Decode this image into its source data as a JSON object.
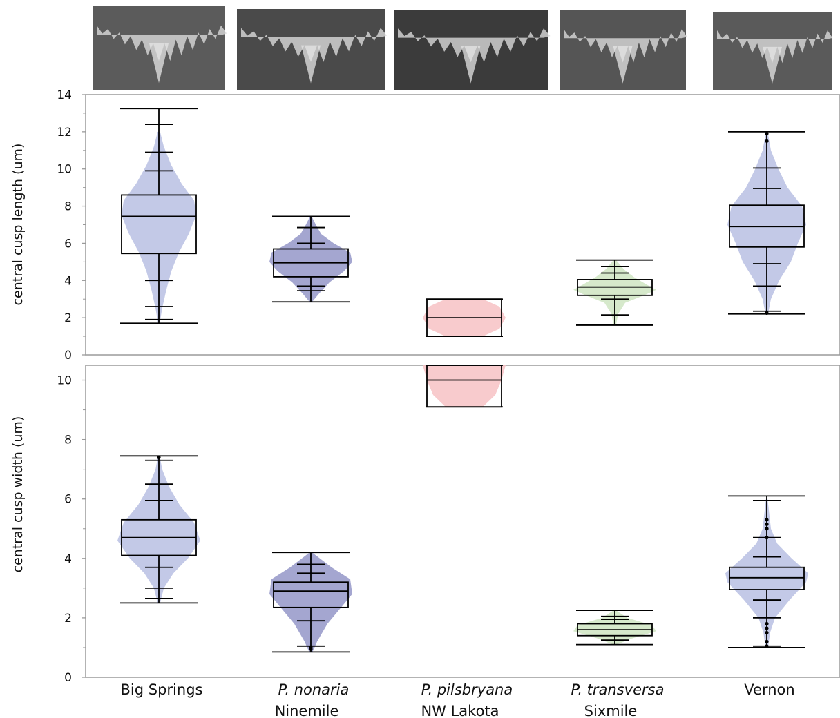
{
  "thumbnails": [
    {
      "group": "Big Springs",
      "shade": "#5b5b5b"
    },
    {
      "group": "P. nonaria Ninemile",
      "shade": "#4a4a4a"
    },
    {
      "group": "P. pilsbryana NW Lakota",
      "shade": "#3b3b3b"
    },
    {
      "group": "P. transversa Sixmile",
      "shade": "#555555"
    },
    {
      "group": "Vernon",
      "shade": "#5a5a5a"
    }
  ],
  "chart_data": [
    {
      "type": "violin+box",
      "ylabel": "central cusp length (um)",
      "ylim": [
        0,
        14
      ],
      "yticks": [
        0,
        2,
        4,
        6,
        8,
        10,
        12,
        14
      ],
      "categories": [
        {
          "name_italic": "",
          "name": "Big Springs"
        },
        {
          "name_italic": "P. nonaria",
          "name": "Ninemile"
        },
        {
          "name_italic": "P. pilsbryana",
          "name": "NW Lakota"
        },
        {
          "name_italic": "P. transversa",
          "name": "Sixmile"
        },
        {
          "name_italic": "",
          "name": "Vernon"
        }
      ],
      "groups": [
        {
          "color": "#b8bfe3",
          "min": 1.7,
          "q1": 5.45,
          "median": 7.45,
          "q3": 8.6,
          "max": 13.25,
          "quantile_ticks": [
            1.9,
            2.6,
            4.0,
            9.9,
            10.9,
            12.4
          ],
          "violin": [
            [
              1.7,
              0.02
            ],
            [
              2.5,
              0.08
            ],
            [
              3.5,
              0.18
            ],
            [
              4.5,
              0.3
            ],
            [
              5.5,
              0.48
            ],
            [
              6.5,
              0.72
            ],
            [
              7.5,
              0.9
            ],
            [
              8.3,
              0.85
            ],
            [
              9.2,
              0.55
            ],
            [
              10.2,
              0.3
            ],
            [
              11.2,
              0.12
            ],
            [
              12.0,
              0.03
            ]
          ],
          "outliers": []
        },
        {
          "color": "#9496c8",
          "min": 2.85,
          "q1": 4.2,
          "median": 4.95,
          "q3": 5.7,
          "max": 7.45,
          "quantile_ticks": [
            3.45,
            3.7,
            6.0,
            6.85
          ],
          "violin": [
            [
              2.85,
              0.03
            ],
            [
              3.3,
              0.2
            ],
            [
              3.9,
              0.45
            ],
            [
              4.5,
              0.8
            ],
            [
              5.0,
              1.0
            ],
            [
              5.5,
              0.95
            ],
            [
              6.0,
              0.55
            ],
            [
              6.5,
              0.25
            ],
            [
              7.0,
              0.12
            ],
            [
              7.45,
              0.02
            ]
          ],
          "outliers": []
        },
        {
          "color": "#f7c2c4",
          "min": 1.0,
          "q1": 1.0,
          "median": 2.0,
          "q3": 3.0,
          "max": 3.0,
          "quantile_ticks": [],
          "violin": [
            [
              1.0,
              0.45
            ],
            [
              1.4,
              0.85
            ],
            [
              2.0,
              1.0
            ],
            [
              2.6,
              0.85
            ],
            [
              3.0,
              0.45
            ]
          ],
          "outliers": []
        },
        {
          "color": "#cfe5c2",
          "min": 1.6,
          "q1": 3.2,
          "median": 3.65,
          "q3": 4.05,
          "max": 5.1,
          "quantile_ticks": [
            2.15,
            3.0,
            4.4,
            4.75
          ],
          "violin": [
            [
              1.6,
              0.03
            ],
            [
              2.2,
              0.08
            ],
            [
              2.8,
              0.25
            ],
            [
              3.2,
              0.7
            ],
            [
              3.5,
              1.0
            ],
            [
              3.8,
              0.75
            ],
            [
              4.2,
              0.45
            ],
            [
              4.6,
              0.22
            ],
            [
              5.1,
              0.03
            ]
          ],
          "outliers": []
        },
        {
          "color": "#b8bfe3",
          "min": 2.2,
          "q1": 5.8,
          "median": 6.9,
          "q3": 8.05,
          "max": 12.0,
          "quantile_ticks": [
            2.35,
            3.7,
            4.9,
            8.95,
            10.05
          ],
          "violin": [
            [
              2.2,
              0.03
            ],
            [
              3.0,
              0.1
            ],
            [
              4.0,
              0.3
            ],
            [
              5.0,
              0.58
            ],
            [
              6.0,
              0.75
            ],
            [
              7.0,
              0.95
            ],
            [
              8.0,
              0.85
            ],
            [
              9.0,
              0.5
            ],
            [
              10.0,
              0.28
            ],
            [
              11.0,
              0.1
            ],
            [
              12.0,
              0.02
            ]
          ],
          "outliers": [
            2.25,
            11.5,
            11.9
          ]
        }
      ]
    },
    {
      "type": "violin+box",
      "ylabel": "central cusp width (um)",
      "ylim": [
        0,
        10.5
      ],
      "yticks": [
        0,
        2,
        4,
        6,
        8,
        10
      ],
      "categories": [
        {
          "name_italic": "",
          "name": "Big Springs"
        },
        {
          "name_italic": "P. nonaria",
          "name": "Ninemile"
        },
        {
          "name_italic": "P. pilsbryana",
          "name": "NW Lakota"
        },
        {
          "name_italic": "P. transversa",
          "name": "Sixmile"
        },
        {
          "name_italic": "",
          "name": "Vernon"
        }
      ],
      "groups": [
        {
          "color": "#b8bfe3",
          "min": 2.5,
          "q1": 4.1,
          "median": 4.7,
          "q3": 5.3,
          "max": 7.45,
          "quantile_ticks": [
            2.65,
            3.0,
            3.7,
            5.95,
            6.5,
            7.3
          ],
          "violin": [
            [
              2.5,
              0.03
            ],
            [
              3.0,
              0.12
            ],
            [
              3.5,
              0.35
            ],
            [
              4.0,
              0.7
            ],
            [
              4.6,
              1.0
            ],
            [
              5.2,
              0.85
            ],
            [
              5.8,
              0.5
            ],
            [
              6.4,
              0.25
            ],
            [
              7.0,
              0.08
            ],
            [
              7.45,
              0.02
            ]
          ],
          "outliers": [
            7.4
          ]
        },
        {
          "color": "#9496c8",
          "min": 0.85,
          "q1": 2.35,
          "median": 2.9,
          "q3": 3.2,
          "max": 4.2,
          "quantile_ticks": [
            1.05,
            1.9,
            3.5,
            3.8
          ],
          "violin": [
            [
              0.85,
              0.04
            ],
            [
              1.2,
              0.15
            ],
            [
              1.8,
              0.4
            ],
            [
              2.3,
              0.7
            ],
            [
              2.8,
              1.0
            ],
            [
              3.3,
              0.95
            ],
            [
              3.7,
              0.5
            ],
            [
              4.2,
              0.03
            ]
          ],
          "outliers": [
            0.95,
            1.0
          ]
        },
        {
          "color": "#f7c2c4",
          "min": 9.1,
          "q1": 9.1,
          "median": 10.0,
          "q3": 10.5,
          "max": 10.5,
          "quantile_ticks": [],
          "violin": [
            [
              9.1,
              0.45
            ],
            [
              9.5,
              0.75
            ],
            [
              10.0,
              0.9
            ],
            [
              10.5,
              1.0
            ]
          ],
          "outliers": []
        },
        {
          "color": "#cfe5c2",
          "min": 1.1,
          "q1": 1.4,
          "median": 1.6,
          "q3": 1.8,
          "max": 2.25,
          "quantile_ticks": [
            1.25,
            1.95,
            2.05
          ],
          "violin": [
            [
              1.1,
              0.05
            ],
            [
              1.3,
              0.4
            ],
            [
              1.55,
              1.0
            ],
            [
              1.75,
              0.9
            ],
            [
              2.0,
              0.3
            ],
            [
              2.25,
              0.03
            ]
          ],
          "outliers": []
        },
        {
          "color": "#b8bfe3",
          "min": 1.0,
          "q1": 2.95,
          "median": 3.35,
          "q3": 3.7,
          "max": 6.1,
          "quantile_ticks": [
            1.05,
            2.0,
            2.6,
            4.05,
            4.7,
            5.95
          ],
          "violin": [
            [
              1.0,
              0.03
            ],
            [
              1.5,
              0.08
            ],
            [
              2.0,
              0.2
            ],
            [
              2.6,
              0.55
            ],
            [
              3.2,
              0.95
            ],
            [
              3.5,
              1.0
            ],
            [
              4.0,
              0.6
            ],
            [
              4.5,
              0.25
            ],
            [
              5.0,
              0.1
            ],
            [
              6.0,
              0.02
            ]
          ],
          "outliers": [
            1.05,
            1.2,
            1.5,
            1.65,
            1.8,
            4.7,
            5.0,
            5.15,
            5.3
          ]
        }
      ]
    }
  ]
}
